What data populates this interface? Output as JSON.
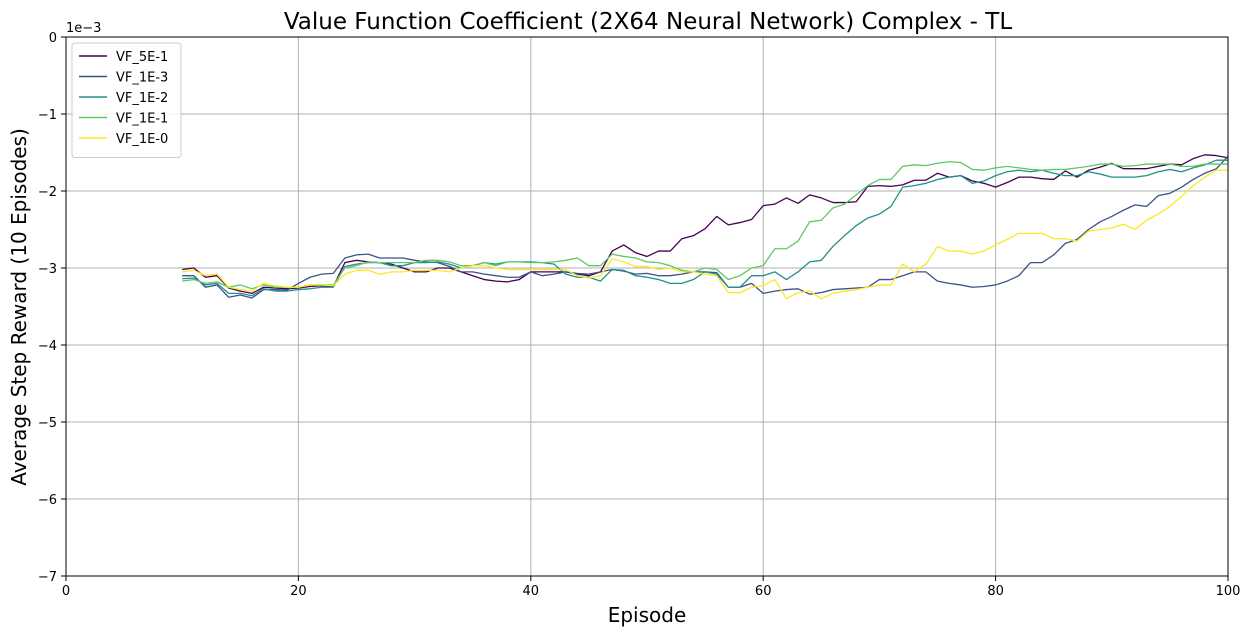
{
  "chart_data": {
    "type": "line",
    "title": "Value Function Coefficient (2X64 Neural Network) Complex - TL",
    "xlabel": "Episode",
    "ylabel": "Average Step Reward (10 Episodes)",
    "y_scale_label": "1e−3",
    "xlim": [
      0,
      100
    ],
    "ylim": [
      -7,
      0
    ],
    "xticks": [
      0,
      20,
      40,
      60,
      80,
      100
    ],
    "xtick_labels": [
      "0",
      "20",
      "40",
      "60",
      "80",
      "100"
    ],
    "yticks": [
      0,
      -1,
      -2,
      -3,
      -4,
      -5,
      -6,
      -7
    ],
    "ytick_labels": [
      "0",
      "−1",
      "−2",
      "−3",
      "−4",
      "−5",
      "−6",
      "−7"
    ],
    "grid": true,
    "legend_position": "top-left",
    "x": [
      10,
      11,
      12,
      13,
      14,
      15,
      16,
      17,
      18,
      19,
      20,
      21,
      22,
      23,
      24,
      25,
      26,
      27,
      28,
      29,
      30,
      31,
      32,
      33,
      34,
      35,
      36,
      37,
      38,
      39,
      40,
      41,
      42,
      43,
      44,
      45,
      46,
      47,
      48,
      49,
      50,
      51,
      52,
      53,
      54,
      55,
      56,
      57,
      58,
      59,
      60,
      61,
      62,
      63,
      64,
      65,
      66,
      67,
      68,
      69,
      70,
      71,
      72,
      73,
      74,
      75,
      76,
      77,
      78,
      79,
      80,
      81,
      82,
      83,
      84,
      85,
      86,
      87,
      88,
      89,
      90,
      91,
      92,
      93,
      94,
      95,
      96,
      97,
      98,
      99,
      100
    ],
    "series": [
      {
        "name": "VF_5E-1",
        "color": "#440154",
        "values": [
          -3.02,
          -3.0,
          -3.12,
          -3.1,
          -3.26,
          -3.3,
          -3.33,
          -3.25,
          -3.26,
          -3.27,
          -3.26,
          -3.24,
          -3.23,
          -3.24,
          -2.93,
          -2.9,
          -2.92,
          -2.93,
          -2.95,
          -3.0,
          -3.05,
          -3.05,
          -3.0,
          -3.0,
          -3.05,
          -3.1,
          -3.15,
          -3.17,
          -3.18,
          -3.15,
          -3.05,
          -3.05,
          -3.05,
          -3.05,
          -3.08,
          -3.1,
          -3.05,
          -2.78,
          -2.7,
          -2.8,
          -2.85,
          -2.78,
          -2.78,
          -2.62,
          -2.58,
          -2.49,
          -2.33,
          -2.44,
          -2.41,
          -2.37,
          -2.19,
          -2.17,
          -2.09,
          -2.16,
          -2.05,
          -2.09,
          -2.15,
          -2.15,
          -2.14,
          -1.94,
          -1.93,
          -1.94,
          -1.92,
          -1.86,
          -1.86,
          -1.77,
          -1.82,
          -1.8,
          -1.87,
          -1.9,
          -1.95,
          -1.89,
          -1.82,
          -1.82,
          -1.84,
          -1.85,
          -1.74,
          -1.82,
          -1.73,
          -1.69,
          -1.64,
          -1.71,
          -1.71,
          -1.71,
          -1.68,
          -1.65,
          -1.66,
          -1.58,
          -1.53,
          -1.54,
          -1.57
        ]
      },
      {
        "name": "VF_1E-3",
        "color": "#3b528b",
        "values": [
          -3.1,
          -3.1,
          -3.25,
          -3.22,
          -3.38,
          -3.35,
          -3.39,
          -3.28,
          -3.28,
          -3.29,
          -3.2,
          -3.12,
          -3.08,
          -3.07,
          -2.87,
          -2.83,
          -2.82,
          -2.87,
          -2.87,
          -2.87,
          -2.9,
          -2.92,
          -2.93,
          -2.98,
          -3.05,
          -3.05,
          -3.08,
          -3.1,
          -3.12,
          -3.12,
          -3.05,
          -3.1,
          -3.08,
          -3.05,
          -3.07,
          -3.08,
          -3.05,
          -3.02,
          -3.04,
          -3.08,
          -3.07,
          -3.1,
          -3.1,
          -3.08,
          -3.05,
          -3.05,
          -3.06,
          -3.25,
          -3.25,
          -3.2,
          -3.33,
          -3.3,
          -3.28,
          -3.27,
          -3.34,
          -3.32,
          -3.28,
          -3.27,
          -3.26,
          -3.25,
          -3.15,
          -3.15,
          -3.1,
          -3.05,
          -3.05,
          -3.17,
          -3.2,
          -3.22,
          -3.25,
          -3.24,
          -3.22,
          -3.17,
          -3.1,
          -2.93,
          -2.93,
          -2.83,
          -2.68,
          -2.63,
          -2.5,
          -2.4,
          -2.33,
          -2.25,
          -2.18,
          -2.2,
          -2.06,
          -2.03,
          -1.95,
          -1.85,
          -1.77,
          -1.71,
          -1.55
        ]
      },
      {
        "name": "VF_1E-2",
        "color": "#21918c",
        "values": [
          -3.14,
          -3.13,
          -3.22,
          -3.2,
          -3.33,
          -3.33,
          -3.36,
          -3.27,
          -3.3,
          -3.3,
          -3.28,
          -3.27,
          -3.25,
          -3.25,
          -2.98,
          -2.95,
          -2.93,
          -2.93,
          -2.97,
          -2.97,
          -2.93,
          -2.93,
          -2.92,
          -2.95,
          -3.0,
          -2.97,
          -2.93,
          -2.95,
          -2.92,
          -2.92,
          -2.92,
          -2.93,
          -2.95,
          -3.08,
          -3.12,
          -3.12,
          -3.17,
          -3.02,
          -3.03,
          -3.1,
          -3.12,
          -3.15,
          -3.2,
          -3.2,
          -3.15,
          -3.05,
          -3.08,
          -3.25,
          -3.25,
          -3.1,
          -3.1,
          -3.05,
          -3.15,
          -3.05,
          -2.92,
          -2.9,
          -2.72,
          -2.58,
          -2.45,
          -2.35,
          -2.3,
          -2.2,
          -1.95,
          -1.93,
          -1.9,
          -1.85,
          -1.82,
          -1.8,
          -1.9,
          -1.87,
          -1.8,
          -1.75,
          -1.73,
          -1.75,
          -1.73,
          -1.77,
          -1.8,
          -1.8,
          -1.75,
          -1.78,
          -1.82,
          -1.82,
          -1.82,
          -1.8,
          -1.75,
          -1.72,
          -1.75,
          -1.7,
          -1.66,
          -1.6,
          -1.6
        ]
      },
      {
        "name": "VF_1E-1",
        "color": "#5ec962",
        "values": [
          -3.17,
          -3.15,
          -3.2,
          -3.18,
          -3.25,
          -3.22,
          -3.27,
          -3.22,
          -3.25,
          -3.25,
          -3.25,
          -3.22,
          -3.22,
          -3.22,
          -3.0,
          -2.97,
          -2.92,
          -2.93,
          -2.93,
          -2.93,
          -2.93,
          -2.9,
          -2.9,
          -2.92,
          -2.97,
          -2.97,
          -2.93,
          -2.97,
          -2.92,
          -2.92,
          -2.93,
          -2.93,
          -2.92,
          -2.9,
          -2.87,
          -2.97,
          -2.97,
          -2.82,
          -2.85,
          -2.87,
          -2.92,
          -2.93,
          -2.97,
          -3.03,
          -3.05,
          -3.0,
          -3.02,
          -3.15,
          -3.1,
          -3.0,
          -2.97,
          -2.75,
          -2.75,
          -2.65,
          -2.4,
          -2.38,
          -2.22,
          -2.17,
          -2.05,
          -1.93,
          -1.85,
          -1.85,
          -1.68,
          -1.66,
          -1.67,
          -1.64,
          -1.62,
          -1.63,
          -1.72,
          -1.73,
          -1.7,
          -1.68,
          -1.7,
          -1.72,
          -1.73,
          -1.72,
          -1.72,
          -1.7,
          -1.68,
          -1.65,
          -1.65,
          -1.68,
          -1.67,
          -1.65,
          -1.65,
          -1.65,
          -1.68,
          -1.68,
          -1.65,
          -1.65,
          -1.65
        ]
      },
      {
        "name": "VF_1E-0",
        "color": "#fde725",
        "values": [
          -3.05,
          -3.03,
          -3.1,
          -3.08,
          -3.25,
          -3.28,
          -3.3,
          -3.2,
          -3.23,
          -3.25,
          -3.25,
          -3.22,
          -3.22,
          -3.23,
          -3.08,
          -3.03,
          -3.03,
          -3.08,
          -3.05,
          -3.05,
          -3.03,
          -3.03,
          -3.03,
          -3.05,
          -3.0,
          -2.97,
          -2.97,
          -3.0,
          -3.02,
          -3.02,
          -3.02,
          -3.02,
          -3.02,
          -3.02,
          -3.1,
          -3.13,
          -3.1,
          -2.88,
          -2.92,
          -2.98,
          -2.98,
          -3.02,
          -3.0,
          -3.05,
          -3.05,
          -3.08,
          -3.1,
          -3.32,
          -3.32,
          -3.25,
          -3.23,
          -3.15,
          -3.4,
          -3.32,
          -3.3,
          -3.4,
          -3.33,
          -3.3,
          -3.28,
          -3.25,
          -3.22,
          -3.22,
          -2.95,
          -3.05,
          -2.95,
          -2.72,
          -2.78,
          -2.78,
          -2.82,
          -2.78,
          -2.7,
          -2.63,
          -2.55,
          -2.55,
          -2.55,
          -2.62,
          -2.62,
          -2.65,
          -2.52,
          -2.5,
          -2.48,
          -2.43,
          -2.5,
          -2.38,
          -2.3,
          -2.2,
          -2.07,
          -1.93,
          -1.82,
          -1.73,
          -1.73
        ]
      }
    ]
  }
}
